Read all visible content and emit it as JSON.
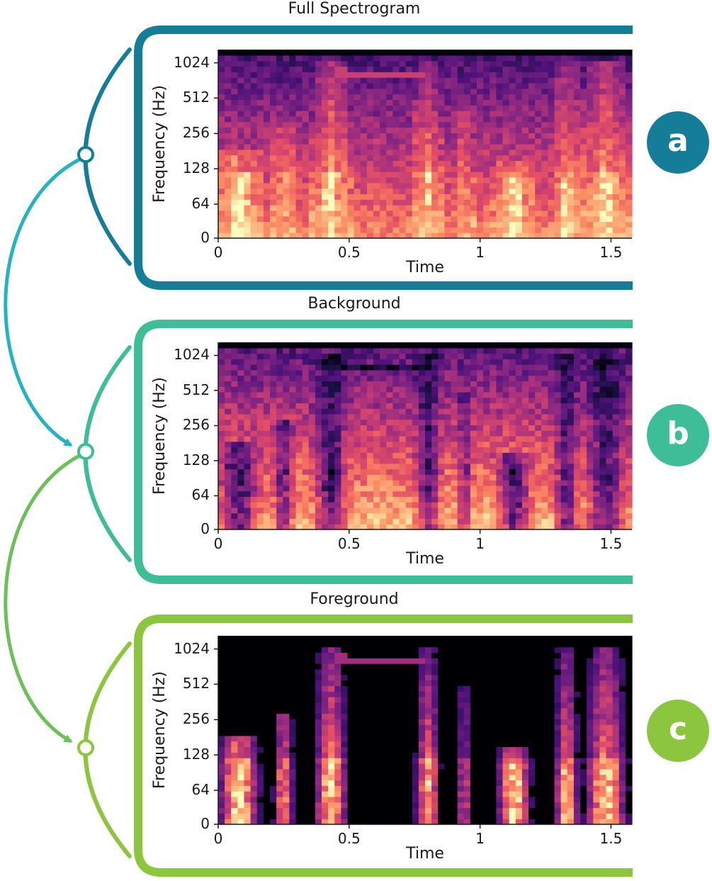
{
  "colors": {
    "panel_a": "#167d99",
    "panel_b": "#3dbd98",
    "panel_c": "#8cc63f",
    "arrow_ab": "#25b3c4",
    "arrow_bc": "#5dbf6a"
  },
  "panels": [
    {
      "id": "a",
      "title": "Full Spectrogram",
      "badge": "a",
      "kind": "full"
    },
    {
      "id": "b",
      "title": "Background",
      "badge": "b",
      "kind": "background"
    },
    {
      "id": "c",
      "title": "Foreground",
      "badge": "c",
      "kind": "foreground"
    }
  ],
  "axes": {
    "ylabel": "Frequency (Hz)",
    "xlabel": "Time",
    "yticks": [
      "1024",
      "512",
      "256",
      "128",
      "64",
      "0"
    ],
    "xticks": [
      "0",
      "0.5",
      "1",
      "1.5"
    ],
    "xvalues": [
      0,
      0.5,
      1,
      1.5
    ],
    "xlim": [
      0,
      1.58
    ]
  },
  "events": [
    {
      "t": 0.08,
      "width": 0.1,
      "top_hz": 180,
      "strength": 1.0
    },
    {
      "t": 0.25,
      "width": 0.05,
      "top_hz": 300,
      "strength": 0.8
    },
    {
      "t": 0.43,
      "width": 0.08,
      "top_hz": 1024,
      "strength": 1.0
    },
    {
      "t": 0.8,
      "width": 0.06,
      "top_hz": 1024,
      "strength": 0.9
    },
    {
      "t": 0.94,
      "width": 0.04,
      "top_hz": 512,
      "strength": 0.6
    },
    {
      "t": 1.13,
      "width": 0.08,
      "top_hz": 140,
      "strength": 1.0
    },
    {
      "t": 1.33,
      "width": 0.06,
      "top_hz": 1024,
      "strength": 0.9
    },
    {
      "t": 1.48,
      "width": 0.1,
      "top_hz": 1024,
      "strength": 1.0
    }
  ]
}
